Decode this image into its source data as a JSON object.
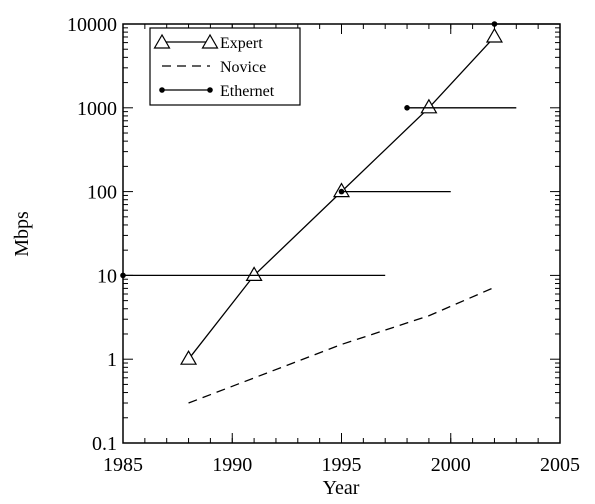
{
  "chart_data": {
    "type": "line",
    "xlabel": "Year",
    "ylabel": "Mbps",
    "xlim": [
      1985,
      2005
    ],
    "xticks": [
      1985,
      1990,
      1995,
      2000,
      2005
    ],
    "ylim": [
      0.1,
      10000
    ],
    "yticks": [
      0.1,
      1,
      10,
      100,
      1000,
      10000
    ],
    "yscale": "log",
    "minor_ticks": true,
    "legend": "upper left",
    "series": [
      {
        "name": "Expert",
        "color": "#000000",
        "style": "solid",
        "marker": "triangle",
        "x": [
          1988,
          1991,
          1995,
          1999,
          2002
        ],
        "values": [
          1,
          10,
          100,
          1000,
          7000
        ]
      },
      {
        "name": "Novice",
        "color": "#000000",
        "style": "dashed",
        "marker": "none",
        "x": [
          1988,
          1995,
          1999,
          2002
        ],
        "values": [
          0.3,
          1.5,
          3.3,
          7.2
        ]
      },
      {
        "name": "Ethernet",
        "color": "#000000",
        "style": "range",
        "marker": "dot",
        "x": [
          1985,
          1995,
          1998,
          2002
        ],
        "x_end": [
          1997,
          2000,
          2003,
          2005
        ],
        "values": [
          10,
          100,
          1000,
          10000
        ]
      }
    ]
  }
}
